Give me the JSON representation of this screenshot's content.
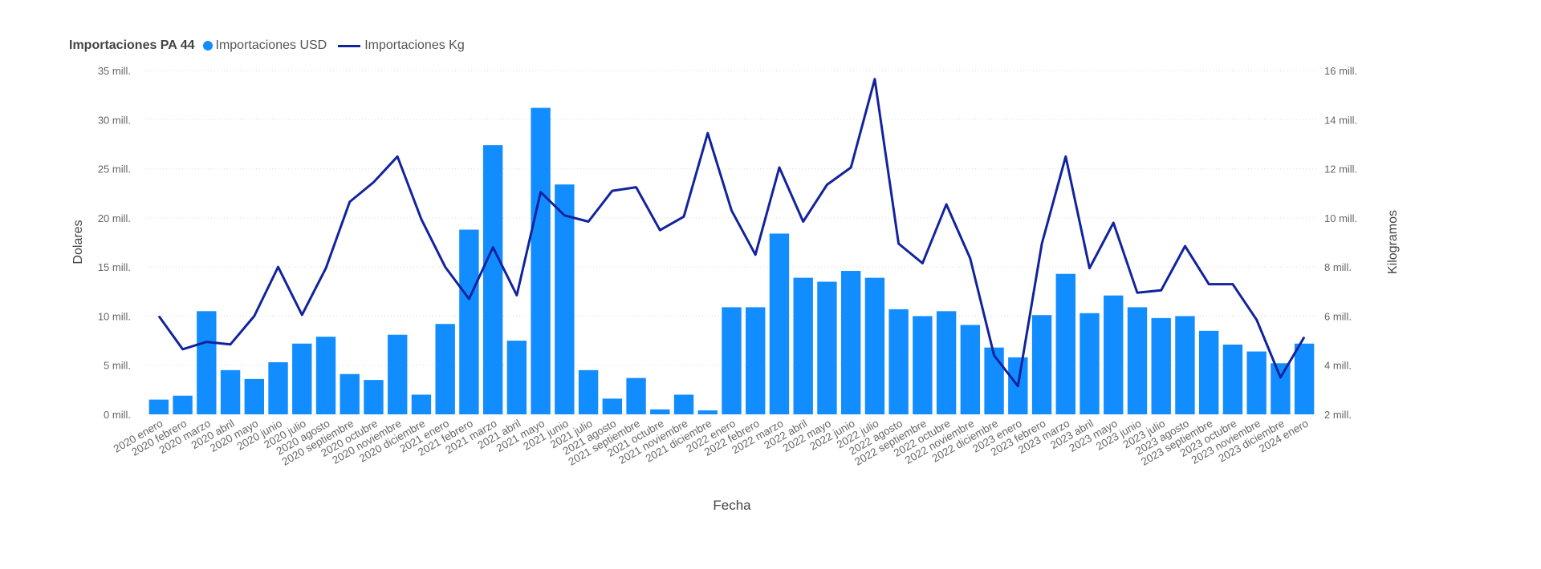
{
  "colors": {
    "bar": "#118DFF",
    "line": "#12239E",
    "grid": "#d9d9d9",
    "text": "#666666"
  },
  "legend": {
    "title": "Importaciones PA 44",
    "items": [
      {
        "label": "Importaciones USD",
        "icon": "circle-icon"
      },
      {
        "label": "Importaciones Kg",
        "icon": "line-icon"
      }
    ]
  },
  "chart_data": {
    "type": "bar",
    "title": "Importaciones PA 44",
    "xlabel": "Fecha",
    "ylabel": "Dolares",
    "y2label": "Kilogramos",
    "ylim": [
      0,
      35000000
    ],
    "y2lim": [
      2000000,
      16000000
    ],
    "yticks": [
      "0 mill.",
      "5 mill.",
      "10 mill.",
      "15 mill.",
      "20 mill.",
      "25 mill.",
      "30 mill.",
      "35 mill."
    ],
    "y2ticks": [
      "2 mill.",
      "4 mill.",
      "6 mill.",
      "8 mill.",
      "10 mill.",
      "12 mill.",
      "14 mill.",
      "16 mill."
    ],
    "grid": true,
    "legend_position": "top-left",
    "categories": [
      "2020 enero",
      "2020 febrero",
      "2020 marzo",
      "2020 abril",
      "2020 mayo",
      "2020 junio",
      "2020 julio",
      "2020 agosto",
      "2020 septiembre",
      "2020 octubre",
      "2020 noviembre",
      "2020 diciembre",
      "2021 enero",
      "2021 febrero",
      "2021 marzo",
      "2021 abril",
      "2021 mayo",
      "2021 junio",
      "2021 julio",
      "2021 agosto",
      "2021 septiembre",
      "2021 octubre",
      "2021 noviembre",
      "2021 diciembre",
      "2022 enero",
      "2022 febrero",
      "2022 marzo",
      "2022 abril",
      "2022 mayo",
      "2022 junio",
      "2022 julio",
      "2022 agosto",
      "2022 septiembre",
      "2022 octubre",
      "2022 noviembre",
      "2022 diciembre",
      "2023 enero",
      "2023 febrero",
      "2023 marzo",
      "2023 abril",
      "2023 mayo",
      "2023 junio",
      "2023 julio",
      "2023 agosto",
      "2023 septiembre",
      "2023 octubre",
      "2023 noviembre",
      "2023 diciembre",
      "2024 enero"
    ],
    "series": [
      {
        "name": "Importaciones USD",
        "type": "bar",
        "axis": "left",
        "values": [
          1500000,
          1900000,
          10500000,
          4500000,
          3600000,
          5300000,
          7200000,
          7900000,
          4100000,
          3500000,
          8100000,
          2000000,
          9200000,
          18800000,
          27400000,
          7500000,
          31200000,
          23400000,
          4500000,
          1600000,
          3700000,
          500000,
          2000000,
          400000,
          10900000,
          10900000,
          18400000,
          13900000,
          13500000,
          14600000,
          13900000,
          10700000,
          10000000,
          10500000,
          9100000,
          6800000,
          5800000,
          10100000,
          14300000,
          10300000,
          12100000,
          10900000,
          9800000,
          10000000,
          8500000,
          7100000,
          6400000,
          5200000,
          7200000
        ]
      },
      {
        "name": "Importaciones Kg",
        "type": "line",
        "axis": "right",
        "values": [
          6000000,
          4650000,
          4950000,
          4850000,
          6000000,
          8000000,
          6050000,
          7950000,
          10650000,
          11450000,
          12500000,
          9950000,
          8000000,
          6700000,
          8800000,
          6850000,
          11050000,
          10100000,
          9850000,
          11100000,
          11250000,
          9500000,
          10050000,
          13450000,
          10300000,
          8500000,
          12050000,
          9850000,
          11350000,
          12050000,
          15650000,
          8950000,
          8150000,
          10550000,
          8350000,
          4400000,
          3150000,
          8950000,
          12500000,
          7950000,
          9800000,
          6950000,
          7050000,
          8850000,
          7300000,
          7300000,
          5850000,
          3500000,
          5150000
        ]
      }
    ]
  }
}
